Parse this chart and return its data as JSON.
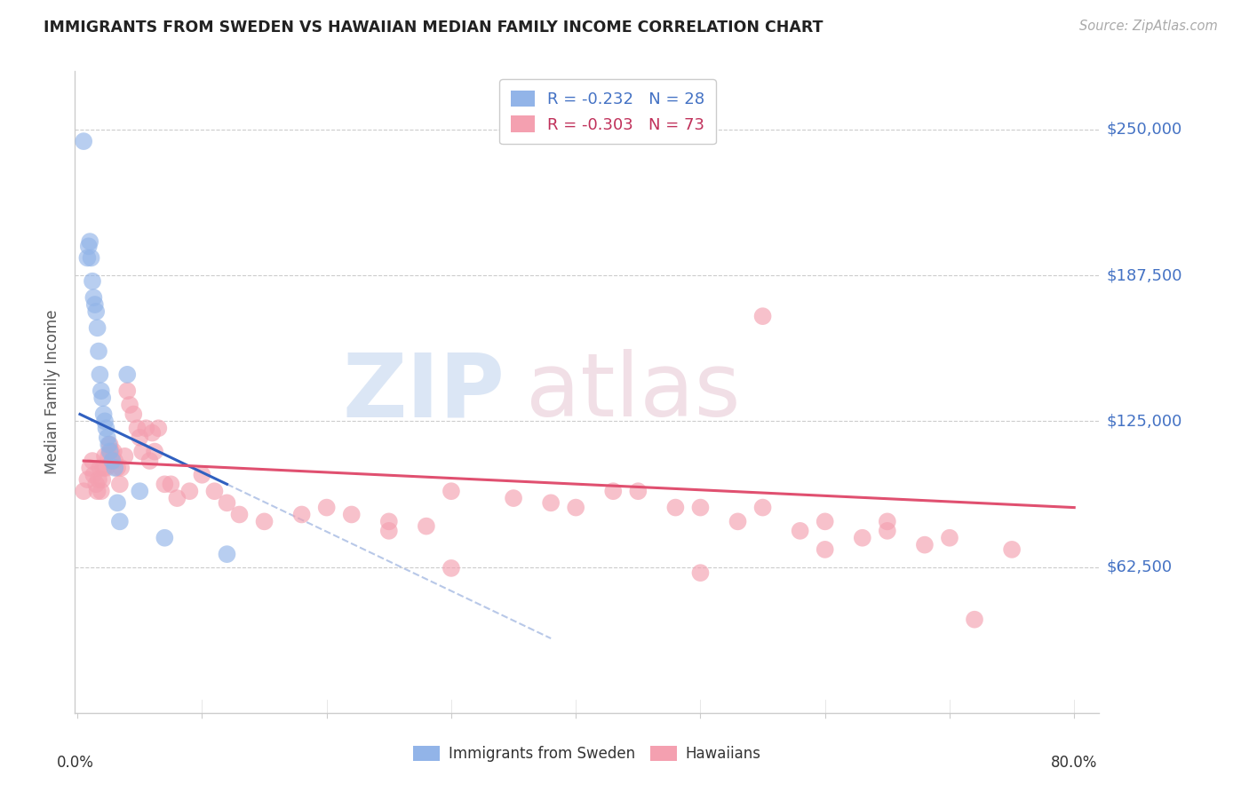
{
  "title": "IMMIGRANTS FROM SWEDEN VS HAWAIIAN MEDIAN FAMILY INCOME CORRELATION CHART",
  "source": "Source: ZipAtlas.com",
  "ylabel": "Median Family Income",
  "ytick_labels": [
    "$250,000",
    "$187,500",
    "$125,000",
    "$62,500"
  ],
  "ytick_values": [
    250000,
    187500,
    125000,
    62500
  ],
  "ymin": 0,
  "ymax": 275000,
  "xmin": -0.002,
  "xmax": 0.82,
  "legend_blue_r": "-0.232",
  "legend_blue_n": "28",
  "legend_pink_r": "-0.303",
  "legend_pink_n": "73",
  "legend_blue_label": "Immigrants from Sweden",
  "legend_pink_label": "Hawaiians",
  "blue_color": "#92b4e8",
  "pink_color": "#f4a0b0",
  "blue_line_color": "#3060c0",
  "pink_line_color": "#e05070",
  "dashed_line_color": "#b8c8e8",
  "blue_scatter_x": [
    0.005,
    0.008,
    0.009,
    0.01,
    0.011,
    0.012,
    0.013,
    0.014,
    0.015,
    0.016,
    0.017,
    0.018,
    0.019,
    0.02,
    0.021,
    0.022,
    0.023,
    0.024,
    0.025,
    0.026,
    0.028,
    0.03,
    0.032,
    0.034,
    0.04,
    0.05,
    0.07,
    0.12
  ],
  "blue_scatter_y": [
    245000,
    195000,
    200000,
    202000,
    195000,
    185000,
    178000,
    175000,
    172000,
    165000,
    155000,
    145000,
    138000,
    135000,
    128000,
    125000,
    122000,
    118000,
    115000,
    112000,
    108000,
    105000,
    90000,
    82000,
    145000,
    95000,
    75000,
    68000
  ],
  "pink_scatter_x": [
    0.005,
    0.008,
    0.01,
    0.012,
    0.013,
    0.015,
    0.016,
    0.017,
    0.018,
    0.019,
    0.02,
    0.021,
    0.022,
    0.023,
    0.025,
    0.026,
    0.027,
    0.028,
    0.029,
    0.03,
    0.032,
    0.034,
    0.035,
    0.038,
    0.04,
    0.042,
    0.045,
    0.048,
    0.05,
    0.052,
    0.055,
    0.058,
    0.06,
    0.062,
    0.065,
    0.07,
    0.075,
    0.08,
    0.09,
    0.1,
    0.11,
    0.12,
    0.13,
    0.15,
    0.18,
    0.2,
    0.22,
    0.25,
    0.28,
    0.3,
    0.35,
    0.4,
    0.45,
    0.5,
    0.55,
    0.6,
    0.65,
    0.7,
    0.75,
    0.55,
    0.65,
    0.3,
    0.25,
    0.5,
    0.6,
    0.68,
    0.72,
    0.38,
    0.43,
    0.48,
    0.53,
    0.58,
    0.63
  ],
  "pink_scatter_y": [
    95000,
    100000,
    105000,
    108000,
    102000,
    98000,
    95000,
    100000,
    105000,
    95000,
    100000,
    105000,
    110000,
    105000,
    110000,
    115000,
    112000,
    108000,
    112000,
    108000,
    105000,
    98000,
    105000,
    110000,
    138000,
    132000,
    128000,
    122000,
    118000,
    112000,
    122000,
    108000,
    120000,
    112000,
    122000,
    98000,
    98000,
    92000,
    95000,
    102000,
    95000,
    90000,
    85000,
    82000,
    85000,
    88000,
    85000,
    82000,
    80000,
    95000,
    92000,
    88000,
    95000,
    88000,
    88000,
    82000,
    78000,
    75000,
    70000,
    170000,
    82000,
    62000,
    78000,
    60000,
    70000,
    72000,
    40000,
    90000,
    95000,
    88000,
    82000,
    78000,
    75000
  ]
}
